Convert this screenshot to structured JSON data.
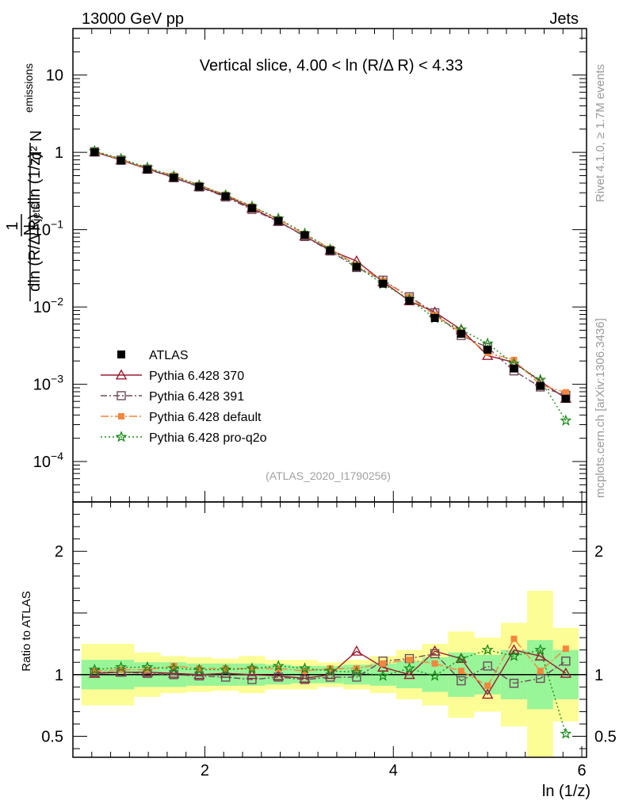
{
  "header": {
    "energy_label": "13000 GeV pp",
    "category_label": "Jets",
    "slice_title": "Vertical slice, 4.00 < ln (R/Δ R) < 4.33",
    "watermark": "(ATLAS_2020_I1790256)",
    "rivet_label": "Rivet 4.1.0, ≥ 1.7M events",
    "mcplots_label": "mcplots.cern.ch [arXiv:1306.3436]"
  },
  "chart_data": {
    "type": "line",
    "title": "Vertical slice, 4.00 < ln (R/Δ R) < 4.33",
    "xlabel": "ln (1/z)",
    "ylabel": "1/N_jets d²N_emissions / dln (R/Δ R) dln (1/z)",
    "ratio_ylabel": "Ratio to ATLAS",
    "xlim": [
      0.6,
      6.05
    ],
    "ylim": [
      3e-05,
      40
    ],
    "yscale": "log",
    "ratio_ylim": [
      0.33,
      2.4
    ],
    "x_ticks": [
      2,
      4,
      6
    ],
    "y_ticks": [
      {
        "value": 10,
        "mant": "10",
        "exp": ""
      },
      {
        "value": 1,
        "mant": "1",
        "exp": ""
      },
      {
        "value": 0.1,
        "mant": "10",
        "exp": "−1"
      },
      {
        "value": 0.01,
        "mant": "10",
        "exp": "−2"
      },
      {
        "value": 0.001,
        "mant": "10",
        "exp": "−3"
      },
      {
        "value": 0.0001,
        "mant": "10",
        "exp": "−4"
      }
    ],
    "ratio_ticks": [
      0.5,
      1,
      2
    ],
    "x": [
      0.83,
      1.11,
      1.39,
      1.67,
      1.94,
      2.22,
      2.5,
      2.78,
      3.06,
      3.33,
      3.61,
      3.89,
      4.17,
      4.44,
      4.72,
      5.0,
      5.28,
      5.56,
      5.83
    ],
    "data": {
      "name": "ATLAS",
      "values": [
        1.0,
        0.78,
        0.6,
        0.47,
        0.36,
        0.27,
        0.19,
        0.13,
        0.085,
        0.054,
        0.033,
        0.02,
        0.012,
        0.0072,
        0.0045,
        0.0028,
        0.0016,
        0.00095,
        0.00065
      ],
      "band_inner": [
        0.12,
        0.12,
        0.1,
        0.1,
        0.09,
        0.09,
        0.09,
        0.08,
        0.07,
        0.07,
        0.08,
        0.09,
        0.11,
        0.14,
        0.18,
        0.16,
        0.2,
        0.28,
        0.2
      ],
      "band_outer": [
        0.25,
        0.25,
        0.18,
        0.15,
        0.14,
        0.13,
        0.15,
        0.12,
        0.12,
        0.1,
        0.12,
        0.15,
        0.2,
        0.25,
        0.35,
        0.3,
        0.42,
        0.68,
        0.38
      ]
    },
    "series": [
      {
        "name": "Pythia 6.428 370",
        "color": "#9b1b30",
        "marker": "triangle-open",
        "dash": "",
        "ratio": [
          1.01,
          1.02,
          1.02,
          1.01,
          1.0,
          1.01,
          1.0,
          0.99,
          0.97,
          1.0,
          1.19,
          1.06,
          1.0,
          1.19,
          1.13,
          0.84,
          1.2,
          1.15,
          1.01
        ]
      },
      {
        "name": "Pythia 6.428 391",
        "color": "#6e4a5a",
        "marker": "square-open",
        "dash": "8,3,2,3",
        "ratio": [
          1.02,
          1.02,
          1.01,
          1.0,
          0.99,
          0.98,
          0.96,
          0.98,
          0.96,
          0.98,
          0.98,
          1.11,
          1.13,
          1.17,
          0.95,
          1.07,
          0.93,
          0.97,
          1.11
        ]
      },
      {
        "name": "Pythia 6.428 default",
        "color": "#f4863d",
        "marker": "square-filled",
        "dash": "10,3,2,3",
        "ratio": [
          1.03,
          1.04,
          1.04,
          1.07,
          1.05,
          1.05,
          1.05,
          1.05,
          1.03,
          1.05,
          1.05,
          1.09,
          1.12,
          1.09,
          1.03,
          0.91,
          1.29,
          1.03,
          1.21
        ]
      },
      {
        "name": "Pythia 6.428 pro-q2o",
        "color": "#1a8a1a",
        "marker": "star",
        "dash": "2,3",
        "ratio": [
          1.04,
          1.06,
          1.06,
          1.05,
          1.04,
          1.04,
          1.05,
          1.07,
          1.05,
          1.03,
          1.02,
          0.99,
          1.05,
          0.99,
          1.13,
          1.2,
          1.15,
          1.2,
          0.52
        ]
      }
    ]
  }
}
